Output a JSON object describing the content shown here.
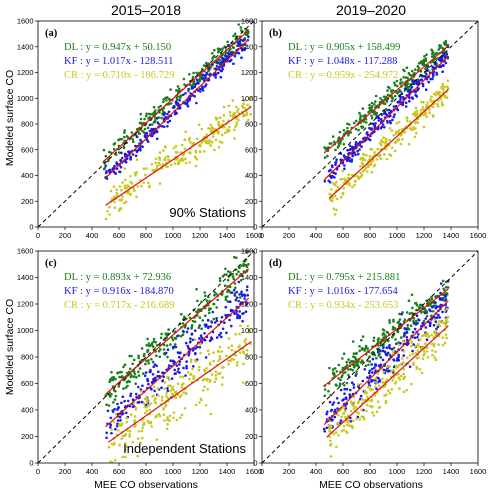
{
  "figure": {
    "col_titles": [
      "2015–2018",
      "2019–2020"
    ],
    "xlabel": "MEE CO observations",
    "ylabel": "Modeled surface CO",
    "ticks": [
      "0",
      "200",
      "400",
      "600",
      "800",
      "1000",
      "1200",
      "1400",
      "1600"
    ]
  },
  "chart_data": [
    {
      "type": "scatter",
      "panel": "(a)",
      "inset": "90% Stations",
      "xlim": [
        0,
        1600
      ],
      "ylim": [
        0,
        1600
      ],
      "one_to_one_line": true,
      "series": [
        {
          "name": "DL",
          "color": "#1a7f1a",
          "equation": "DL : y = 0.947x + 50.150",
          "slope": 0.947,
          "intercept": 50.15,
          "x_range": [
            480,
            1560
          ],
          "spread": 40
        },
        {
          "name": "KF",
          "color": "#1a1ae6",
          "equation": "KF : y = 1.017x - 128.511",
          "slope": 1.017,
          "intercept": -128.511,
          "x_range": [
            500,
            1560
          ],
          "spread": 35
        },
        {
          "name": "CR",
          "color": "#c8c81e",
          "equation": "CR : y = 0.710x - 186.729",
          "slope": 0.71,
          "intercept": -186.729,
          "x_range": [
            500,
            1580
          ],
          "spread": 60
        }
      ]
    },
    {
      "type": "scatter",
      "panel": "(b)",
      "inset": "",
      "xlim": [
        0,
        1600
      ],
      "ylim": [
        0,
        1600
      ],
      "one_to_one_line": true,
      "series": [
        {
          "name": "DL",
          "color": "#1a7f1a",
          "equation": "DL : y = 0.905x + 158.499",
          "slope": 0.905,
          "intercept": 158.499,
          "x_range": [
            460,
            1380
          ],
          "spread": 45
        },
        {
          "name": "KF",
          "color": "#1a1ae6",
          "equation": "KF : y = 1.048x - 117.288",
          "slope": 1.048,
          "intercept": -117.288,
          "x_range": [
            460,
            1380
          ],
          "spread": 35
        },
        {
          "name": "CR",
          "color": "#c8c81e",
          "equation": "CR : y = 0.959x - 254.972",
          "slope": 0.959,
          "intercept": -254.972,
          "x_range": [
            500,
            1380
          ],
          "spread": 50
        }
      ]
    },
    {
      "type": "scatter",
      "panel": "(c)",
      "inset": "Independent Stations",
      "xlim": [
        0,
        1600
      ],
      "ylim": [
        0,
        1600
      ],
      "one_to_one_line": true,
      "series": [
        {
          "name": "DL",
          "color": "#1a7f1a",
          "equation": "DL : y = 0.893x + 72.936",
          "slope": 0.893,
          "intercept": 72.936,
          "x_range": [
            500,
            1560
          ],
          "spread": 70
        },
        {
          "name": "KF",
          "color": "#1a1ae6",
          "equation": "KF : y = 0.916x - 184.870",
          "slope": 0.916,
          "intercept": -184.87,
          "x_range": [
            500,
            1560
          ],
          "spread": 75
        },
        {
          "name": "CR",
          "color": "#c8c81e",
          "equation": "CR : y = 0.717x - 216.689",
          "slope": 0.717,
          "intercept": -216.689,
          "x_range": [
            520,
            1580
          ],
          "spread": 100
        }
      ]
    },
    {
      "type": "scatter",
      "panel": "(d)",
      "inset": "",
      "xlim": [
        0,
        1600
      ],
      "ylim": [
        0,
        1600
      ],
      "one_to_one_line": true,
      "series": [
        {
          "name": "DL",
          "color": "#1a7f1a",
          "equation": "DL : y = 0.795x + 215.881",
          "slope": 0.795,
          "intercept": 215.881,
          "x_range": [
            460,
            1380
          ],
          "spread": 60
        },
        {
          "name": "KF",
          "color": "#1a1ae6",
          "equation": "KF : y = 1.016x - 177.654",
          "slope": 1.016,
          "intercept": -177.654,
          "x_range": [
            460,
            1380
          ],
          "spread": 70
        },
        {
          "name": "CR",
          "color": "#c8c81e",
          "equation": "CR : y = 0.934x - 253.653",
          "slope": 0.934,
          "intercept": -253.653,
          "x_range": [
            480,
            1380
          ],
          "spread": 80
        }
      ]
    }
  ]
}
